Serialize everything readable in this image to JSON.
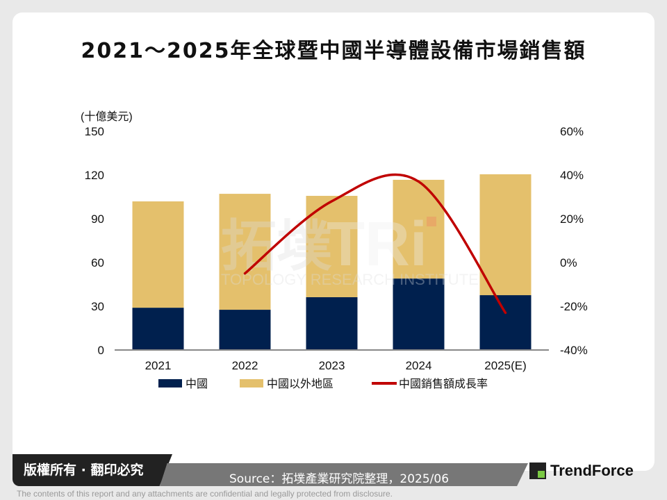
{
  "title": "2021～2025年全球暨中國半導體設備市場銷售額",
  "chart_data": {
    "type": "bar",
    "stacked": true,
    "categories": [
      "2021",
      "2022",
      "2023",
      "2024",
      "2025(E)"
    ],
    "ylabel": "(十億美元)",
    "ylim": [
      0,
      150
    ],
    "yticks": [
      "0",
      "30",
      "60",
      "90",
      "120",
      "150"
    ],
    "y2lim": [
      -40,
      60
    ],
    "y2ticks": [
      "-40%",
      "-20%",
      "0%",
      "20%",
      "40%",
      "60%"
    ],
    "series": [
      {
        "name": "中國",
        "type": "bar",
        "color": "#00204e",
        "values": [
          29,
          27.6,
          36.2,
          49,
          37.6
        ]
      },
      {
        "name": "中國以外地區",
        "type": "bar",
        "color": "#e4c06c",
        "values": [
          72.9,
          79.5,
          69.5,
          67.7,
          82.9
        ]
      },
      {
        "name": "中國銷售額成長率",
        "type": "line",
        "axis": "right",
        "color": "#c00000",
        "values": [
          null,
          -5,
          28,
          37,
          -23
        ]
      }
    ],
    "legend": "bottom",
    "grid": false
  },
  "watermark": "拓墣 TRi TOPOLOGY RESEARCH INSTITUTE",
  "footer": {
    "copyright": "版權所有 · 翻印必究",
    "source": "Source：拓墣產業研究院整理，2025/06",
    "brand": "TrendForce",
    "disclaimer": "The contents of this report and any attachments are confidential and legally protected from disclosure."
  }
}
